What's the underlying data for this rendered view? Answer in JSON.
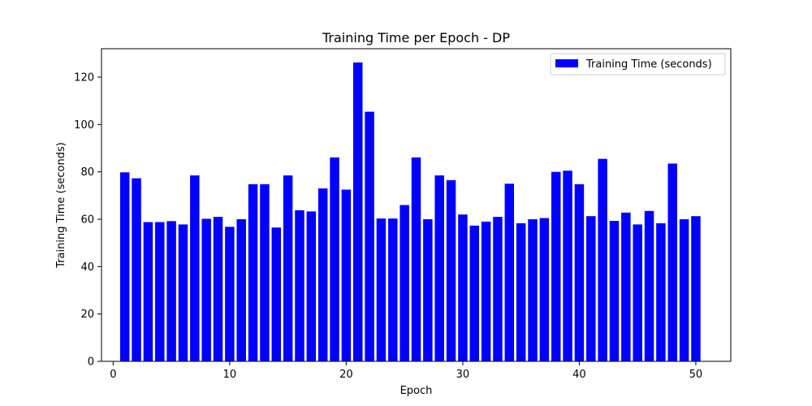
{
  "chart_data": {
    "type": "bar",
    "title": "Training Time per Epoch - DP",
    "xlabel": "Epoch",
    "ylabel": "Training Time (seconds)",
    "xlim": [
      -1,
      53
    ],
    "ylim": [
      0,
      132
    ],
    "xticks": [
      0,
      10,
      20,
      30,
      40,
      50
    ],
    "yticks": [
      0,
      20,
      40,
      60,
      80,
      100,
      120
    ],
    "grid": false,
    "legend_position": "upper right",
    "series": [
      {
        "name": "Training Time (seconds)",
        "color": "#0000ff",
        "x": [
          1,
          2,
          3,
          4,
          5,
          6,
          7,
          8,
          9,
          10,
          11,
          12,
          13,
          14,
          15,
          16,
          17,
          18,
          19,
          20,
          21,
          22,
          23,
          24,
          25,
          26,
          27,
          28,
          29,
          30,
          31,
          32,
          33,
          34,
          35,
          36,
          37,
          38,
          39,
          40,
          41,
          42,
          43,
          44,
          45,
          46,
          47,
          48,
          49,
          50
        ],
        "values": [
          79.8,
          77.3,
          58.8,
          58.8,
          59.2,
          57.8,
          78.5,
          60.2,
          61.0,
          56.8,
          60.0,
          74.8,
          74.8,
          56.5,
          78.5,
          63.8,
          63.3,
          73.0,
          86.1,
          72.5,
          126.2,
          105.4,
          60.3,
          60.3,
          66.0,
          86.1,
          60.0,
          78.5,
          76.5,
          62.0,
          57.3,
          59.0,
          61.0,
          75.0,
          58.3,
          60.0,
          60.5,
          80.0,
          80.5,
          74.8,
          61.3,
          85.5,
          59.3,
          62.8,
          57.8,
          63.5,
          58.3,
          83.5,
          60.0,
          61.3
        ]
      }
    ]
  }
}
